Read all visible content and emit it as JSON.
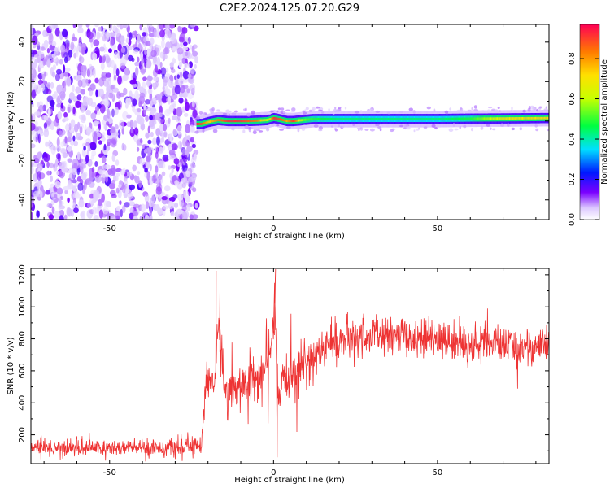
{
  "title": "C2E2.2024.125.07.20.G29",
  "chart_data": [
    {
      "type": "heatmap",
      "xlabel": "Height of straight line (km)",
      "ylabel": "Frequency (Hz)",
      "xlim": [
        -74,
        84
      ],
      "ylim": [
        -50,
        49
      ],
      "xticks": [
        -50,
        0,
        50
      ],
      "yticks": [
        -40,
        -20,
        0,
        20,
        40
      ],
      "colorbar": {
        "label": "Normalized spectral amplitude",
        "range": [
          0,
          0.97
        ],
        "ticks": [
          0.0,
          0.2,
          0.4,
          0.6,
          0.8
        ]
      },
      "noise_region_x": [
        -74,
        -23.5
      ],
      "signal_track": {
        "x": [
          -23.5,
          -22,
          -20,
          -17,
          -14,
          -11,
          -8,
          -5,
          -2,
          0,
          2,
          4,
          6,
          9,
          12,
          20,
          30,
          40,
          50,
          60,
          70,
          84
        ],
        "freq": [
          -1.5,
          -1.5,
          -0.5,
          0.5,
          0.0,
          0.0,
          0.0,
          0.2,
          0.5,
          1.5,
          0.8,
          0.0,
          0.0,
          0.5,
          1.0,
          1.0,
          1.0,
          1.0,
          1.0,
          1.2,
          1.3,
          1.5
        ],
        "amplitude": [
          0.95,
          0.9,
          0.75,
          0.85,
          0.95,
          0.95,
          0.9,
          0.85,
          0.6,
          0.95,
          0.9,
          0.8,
          0.95,
          0.55,
          0.5,
          0.45,
          0.45,
          0.45,
          0.45,
          0.5,
          0.7,
          0.75
        ]
      }
    },
    {
      "type": "line",
      "color": "#ee3333",
      "xlabel": "Height of straight line (km)",
      "ylabel": "SNR (10 * v/v)",
      "xlim": [
        -74,
        84
      ],
      "ylim": [
        20,
        1240
      ],
      "xticks": [
        -50,
        0,
        50
      ],
      "yticks": [
        200,
        400,
        600,
        800,
        1000,
        1200
      ],
      "series": [
        {
          "x": [
            -74,
            -65,
            -55,
            -45,
            -35,
            -28,
            -22,
            -21,
            -20,
            -18,
            -16.5,
            -15,
            -12,
            -10,
            -8,
            -5,
            -3,
            -1,
            0.5,
            1.0,
            1.5,
            2,
            4,
            8,
            12,
            20,
            30,
            40,
            50,
            60,
            70,
            84
          ],
          "mean": [
            120,
            120,
            120,
            120,
            120,
            120,
            135,
            450,
            560,
            520,
            900,
            470,
            490,
            510,
            520,
            560,
            610,
            680,
            980,
            450,
            350,
            450,
            560,
            620,
            690,
            790,
            820,
            820,
            790,
            770,
            760,
            750
          ],
          "spread": [
            60,
            60,
            60,
            60,
            60,
            60,
            60,
            120,
            150,
            150,
            200,
            180,
            160,
            160,
            160,
            160,
            160,
            180,
            200,
            220,
            200,
            180,
            170,
            160,
            160,
            140,
            130,
            130,
            130,
            130,
            130,
            130
          ],
          "peaks": [
            [
              -17.5,
              1225
            ],
            [
              -16.3,
              1210
            ],
            [
              0.6,
              1235
            ],
            [
              0.3,
              1150
            ]
          ]
        }
      ]
    }
  ]
}
